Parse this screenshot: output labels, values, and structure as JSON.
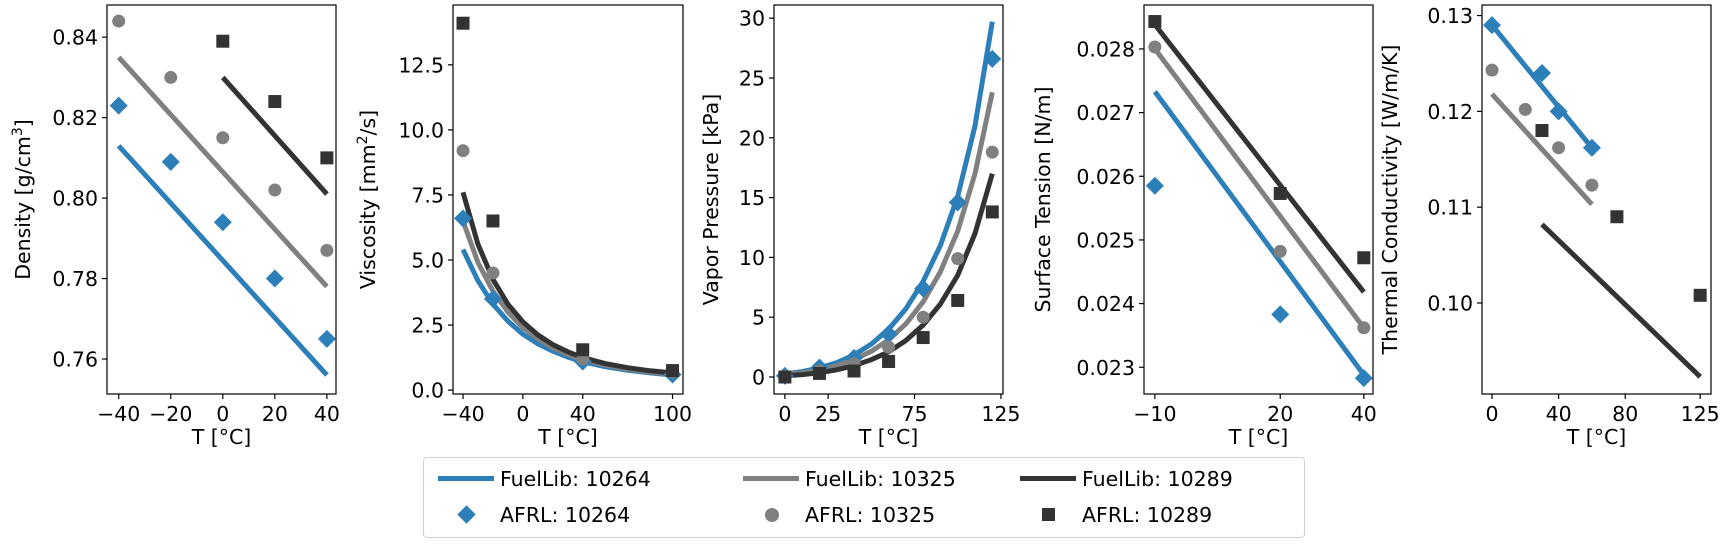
{
  "figure": {
    "legend": {
      "placement": "bottom-center",
      "columns": 3,
      "entries": [
        {
          "label": "FuelLib: 10264",
          "kind": "line",
          "color": "#2c7fb8"
        },
        {
          "label": "AFRL: 10264",
          "kind": "diamond",
          "color": "#2c7fb8"
        },
        {
          "label": "FuelLib: 10325",
          "kind": "line",
          "color": "#808080"
        },
        {
          "label": "AFRL: 10325",
          "kind": "circle",
          "color": "#808080"
        },
        {
          "label": "FuelLib: 10289",
          "kind": "line",
          "color": "#333333"
        },
        {
          "label": "AFRL: 10289",
          "kind": "square",
          "color": "#333333"
        }
      ]
    },
    "colors": {
      "10264": "#2c7fb8",
      "10325": "#808080",
      "10289": "#333333"
    }
  },
  "chart_data": [
    {
      "type": "line",
      "title": "",
      "xlabel": "T [°C]",
      "ylabel": "Density [g/cm³]",
      "ylabel_main": "Density [g/cm",
      "ylabel_sup": "3",
      "ylabel_tail": "]",
      "xlim": [
        -44.5,
        43.5
      ],
      "ylim": [
        0.7513,
        0.848
      ],
      "xticks": [
        -40,
        -20,
        0,
        20,
        40
      ],
      "xtick_labels": [
        "−40",
        "−20",
        "0",
        "20",
        "40"
      ],
      "yticks": [
        0.76,
        0.78,
        0.8,
        0.82,
        0.84
      ],
      "ytick_labels": [
        "0.76",
        "0.78",
        "0.80",
        "0.82",
        "0.84"
      ],
      "grid": false,
      "series": [
        {
          "name": "FuelLib: 10264",
          "kind": "line",
          "fuel": "10264",
          "x": [
            -40,
            40
          ],
          "y": [
            0.813,
            0.756
          ]
        },
        {
          "name": "FuelLib: 10325",
          "kind": "line",
          "fuel": "10325",
          "x": [
            -40,
            40
          ],
          "y": [
            0.835,
            0.778
          ]
        },
        {
          "name": "FuelLib: 10289",
          "kind": "line",
          "fuel": "10289",
          "x": [
            0,
            40
          ],
          "y": [
            0.83,
            0.801
          ]
        },
        {
          "name": "AFRL: 10264",
          "kind": "diamond",
          "fuel": "10264",
          "x": [
            -40,
            -20,
            0,
            20,
            40
          ],
          "y": [
            0.823,
            0.809,
            0.794,
            0.78,
            0.765
          ]
        },
        {
          "name": "AFRL: 10325",
          "kind": "circle",
          "fuel": "10325",
          "x": [
            -40,
            -20,
            0,
            20,
            40
          ],
          "y": [
            0.844,
            0.83,
            0.815,
            0.802,
            0.787
          ]
        },
        {
          "name": "AFRL: 10289",
          "kind": "square",
          "fuel": "10289",
          "x": [
            0,
            20,
            40
          ],
          "y": [
            0.839,
            0.824,
            0.81
          ]
        }
      ]
    },
    {
      "type": "line",
      "title": "",
      "xlabel": "T [°C]",
      "ylabel": "Viscosity [mm²/s]",
      "ylabel_main": "Viscosity [mm",
      "ylabel_sup": "2",
      "ylabel_tail": "/s]",
      "xlim": [
        -46.7,
        107
      ],
      "ylim": [
        -0.15,
        14.8
      ],
      "xticks": [
        -40,
        0,
        40,
        100
      ],
      "xtick_labels": [
        "−40",
        "0",
        "40",
        "100"
      ],
      "yticks": [
        0.0,
        2.5,
        5.0,
        7.5,
        10.0,
        12.5
      ],
      "ytick_labels": [
        "0.0",
        "2.5",
        "5.0",
        "7.5",
        "10.0",
        "12.5"
      ],
      "grid": false,
      "series": [
        {
          "name": "FuelLib: 10264",
          "kind": "line",
          "fuel": "10264",
          "x": [
            -40,
            -30,
            -20,
            -10,
            0,
            10,
            20,
            30,
            40,
            55,
            70,
            85,
            100
          ],
          "y": [
            5.4,
            4.2,
            3.3,
            2.65,
            2.15,
            1.78,
            1.5,
            1.27,
            1.09,
            0.9,
            0.76,
            0.66,
            0.58
          ]
        },
        {
          "name": "FuelLib: 10325",
          "kind": "line",
          "fuel": "10325",
          "x": [
            -40,
            -30,
            -20,
            -10,
            0,
            10,
            20,
            30,
            40,
            55,
            70,
            85,
            100
          ],
          "y": [
            6.5,
            4.9,
            3.8,
            3.0,
            2.4,
            1.97,
            1.63,
            1.37,
            1.17,
            0.96,
            0.8,
            0.69,
            0.61
          ]
        },
        {
          "name": "FuelLib: 10289",
          "kind": "line",
          "fuel": "10289",
          "x": [
            -40,
            -30,
            -20,
            -10,
            0,
            10,
            20,
            30,
            40,
            55,
            70,
            85,
            100
          ],
          "y": [
            7.6,
            5.6,
            4.25,
            3.3,
            2.62,
            2.12,
            1.75,
            1.47,
            1.25,
            1.02,
            0.86,
            0.74,
            0.66
          ]
        },
        {
          "name": "AFRL: 10264",
          "kind": "diamond",
          "fuel": "10264",
          "x": [
            -40,
            -20,
            40,
            100
          ],
          "y": [
            6.6,
            3.5,
            1.1,
            0.6
          ]
        },
        {
          "name": "AFRL: 10325",
          "kind": "circle",
          "fuel": "10325",
          "x": [
            -40,
            -20,
            40,
            100
          ],
          "y": [
            9.2,
            4.5,
            1.2,
            0.7
          ]
        },
        {
          "name": "AFRL: 10289",
          "kind": "square",
          "fuel": "10289",
          "x": [
            -40,
            -20,
            40,
            100
          ],
          "y": [
            14.1,
            6.5,
            1.55,
            0.75
          ]
        }
      ]
    },
    {
      "type": "line",
      "title": "",
      "xlabel": "T [°C]",
      "ylabel": "Vapor Pressure [kPa]",
      "ylabel_main": "Vapor Pressure [kPa]",
      "ylabel_sup": "",
      "ylabel_tail": "",
      "xlim": [
        -6.3,
        126.2
      ],
      "ylim": [
        -1.42,
        31.1
      ],
      "xticks": [
        0,
        25,
        75,
        125
      ],
      "xtick_labels": [
        "0",
        "25",
        "75",
        "125"
      ],
      "yticks": [
        0,
        5,
        10,
        15,
        20,
        25,
        30
      ],
      "ytick_labels": [
        "0",
        "5",
        "10",
        "15",
        "20",
        "25",
        "30"
      ],
      "grid": false,
      "series": [
        {
          "name": "FuelLib: 10264",
          "kind": "line",
          "fuel": "10264",
          "x": [
            0,
            10,
            20,
            30,
            40,
            50,
            60,
            70,
            80,
            90,
            100,
            110,
            120
          ],
          "y": [
            0.25,
            0.45,
            0.75,
            1.2,
            1.85,
            2.75,
            4.0,
            5.7,
            8.0,
            11.0,
            15.1,
            21.0,
            29.7
          ]
        },
        {
          "name": "FuelLib: 10325",
          "kind": "line",
          "fuel": "10325",
          "x": [
            0,
            10,
            20,
            30,
            40,
            50,
            60,
            70,
            80,
            90,
            100,
            110,
            120
          ],
          "y": [
            0.2,
            0.35,
            0.6,
            0.95,
            1.45,
            2.15,
            3.1,
            4.45,
            6.3,
            8.8,
            12.2,
            17.0,
            23.8
          ]
        },
        {
          "name": "FuelLib: 10289",
          "kind": "line",
          "fuel": "10289",
          "x": [
            0,
            10,
            20,
            30,
            40,
            50,
            60,
            70,
            80,
            90,
            100,
            110,
            120
          ],
          "y": [
            0.1,
            0.2,
            0.35,
            0.6,
            0.95,
            1.45,
            2.1,
            3.05,
            4.35,
            6.1,
            8.5,
            12.0,
            17.0
          ]
        },
        {
          "name": "AFRL: 10264",
          "kind": "diamond",
          "fuel": "10264",
          "x": [
            0,
            20,
            40,
            60,
            80,
            100,
            120
          ],
          "y": [
            0.1,
            0.8,
            1.6,
            3.6,
            7.4,
            14.6,
            26.6
          ]
        },
        {
          "name": "AFRL: 10325",
          "kind": "circle",
          "fuel": "10325",
          "x": [
            0,
            20,
            40,
            60,
            80,
            100,
            120
          ],
          "y": [
            0.05,
            0.5,
            1.1,
            2.5,
            5.0,
            9.9,
            18.8
          ]
        },
        {
          "name": "AFRL: 10289",
          "kind": "square",
          "fuel": "10289",
          "x": [
            0,
            20,
            40,
            60,
            80,
            100,
            120
          ],
          "y": [
            0.0,
            0.3,
            0.5,
            1.3,
            3.3,
            6.4,
            13.8
          ]
        }
      ]
    },
    {
      "type": "line",
      "title": "",
      "xlabel": "T [°C]",
      "ylabel": "Surface Tension [N/m]",
      "ylabel_main": "Surface Tension [N/m]",
      "ylabel_sup": "",
      "ylabel_tail": "",
      "xlim": [
        -12.6,
        42.2
      ],
      "ylim": [
        0.02258,
        0.02869
      ],
      "xticks": [
        -10,
        20,
        40
      ],
      "xtick_labels": [
        "−10",
        "20",
        "40"
      ],
      "yticks": [
        0.023,
        0.024,
        0.025,
        0.026,
        0.027,
        0.028
      ],
      "ytick_labels": [
        "0.023",
        "0.024",
        "0.025",
        "0.026",
        "0.027",
        "0.028"
      ],
      "grid": false,
      "series": [
        {
          "name": "FuelLib: 10264",
          "kind": "line",
          "fuel": "10264",
          "x": [
            -10,
            40
          ],
          "y": [
            0.02733,
            0.02288
          ]
        },
        {
          "name": "FuelLib: 10325",
          "kind": "line",
          "fuel": "10325",
          "x": [
            -10,
            40
          ],
          "y": [
            0.028,
            0.02362
          ]
        },
        {
          "name": "FuelLib: 10289",
          "kind": "line",
          "fuel": "10289",
          "x": [
            -10,
            40
          ],
          "y": [
            0.02838,
            0.02418
          ]
        },
        {
          "name": "AFRL: 10264",
          "kind": "diamond",
          "fuel": "10264",
          "x": [
            -10,
            20,
            40
          ],
          "y": [
            0.02585,
            0.02383,
            0.02283
          ]
        },
        {
          "name": "AFRL: 10325",
          "kind": "circle",
          "fuel": "10325",
          "x": [
            -10,
            20,
            40
          ],
          "y": [
            0.02803,
            0.02482,
            0.02362
          ]
        },
        {
          "name": "AFRL: 10289",
          "kind": "square",
          "fuel": "10289",
          "x": [
            -10,
            20,
            40
          ],
          "y": [
            0.02843,
            0.02573,
            0.02472
          ]
        }
      ]
    },
    {
      "type": "line",
      "title": "",
      "xlabel": "T [°C]",
      "ylabel": "Thermal Conductivity [W/m/K]",
      "ylabel_main": "Thermal Conductivity [W/m/K]",
      "ylabel_sup": "",
      "ylabel_tail": "",
      "xlim": [
        -6.0,
        131.5
      ],
      "ylim": [
        0.0905,
        0.1311
      ],
      "xticks": [
        0,
        40,
        80,
        125
      ],
      "xtick_labels": [
        "0",
        "40",
        "80",
        "125"
      ],
      "yticks": [
        0.1,
        0.11,
        0.12,
        0.13
      ],
      "ytick_labels": [
        "0.10",
        "0.11",
        "0.12",
        "0.13"
      ],
      "grid": false,
      "series": [
        {
          "name": "FuelLib: 10264",
          "kind": "line",
          "fuel": "10264",
          "x": [
            0,
            60
          ],
          "y": [
            0.129,
            0.1162
          ]
        },
        {
          "name": "FuelLib: 10325",
          "kind": "line",
          "fuel": "10325",
          "x": [
            0,
            60
          ],
          "y": [
            0.1218,
            0.1103
          ]
        },
        {
          "name": "FuelLib: 10289",
          "kind": "line",
          "fuel": "10289",
          "x": [
            30,
            125
          ],
          "y": [
            0.1082,
            0.0923
          ]
        },
        {
          "name": "AFRL: 10264",
          "kind": "diamond",
          "fuel": "10264",
          "x": [
            0,
            30,
            40,
            60
          ],
          "y": [
            0.129,
            0.124,
            0.12,
            0.1162
          ]
        },
        {
          "name": "AFRL: 10325",
          "kind": "circle",
          "fuel": "10325",
          "x": [
            0,
            20,
            40,
            60
          ],
          "y": [
            0.1243,
            0.1202,
            0.1162,
            0.1123
          ]
        },
        {
          "name": "AFRL: 10289",
          "kind": "square",
          "fuel": "10289",
          "x": [
            30,
            75,
            125
          ],
          "y": [
            0.118,
            0.109,
            0.1008
          ]
        }
      ]
    }
  ]
}
